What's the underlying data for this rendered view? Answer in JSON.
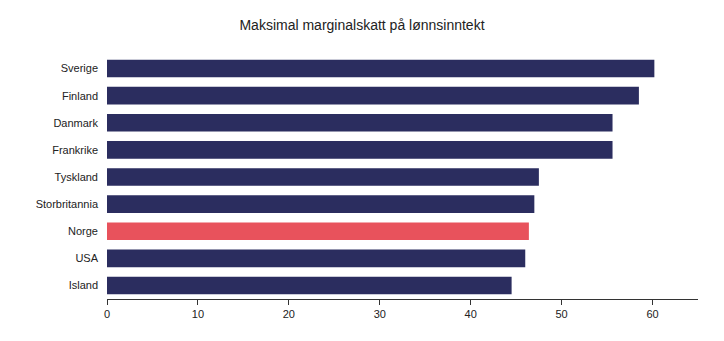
{
  "chart_data": {
    "type": "bar",
    "orientation": "horizontal",
    "title": "Maksimal marginalskatt på lønnsinntekt",
    "categories": [
      "Sverige",
      "Finland",
      "Danmark",
      "Frankrike",
      "Tyskland",
      "Storbritannia",
      "Norge",
      "USA",
      "Island"
    ],
    "values": [
      60.2,
      58.5,
      55.6,
      55.6,
      47.5,
      47.0,
      46.4,
      46.0,
      44.5
    ],
    "colors": [
      "#2b2d5f",
      "#2b2d5f",
      "#2b2d5f",
      "#2b2d5f",
      "#2b2d5f",
      "#2b2d5f",
      "#e8525c",
      "#2b2d5f",
      "#2b2d5f"
    ],
    "xlim": [
      0,
      65
    ],
    "xticks": [
      0,
      10,
      20,
      30,
      40,
      50,
      60
    ],
    "grid": false
  }
}
